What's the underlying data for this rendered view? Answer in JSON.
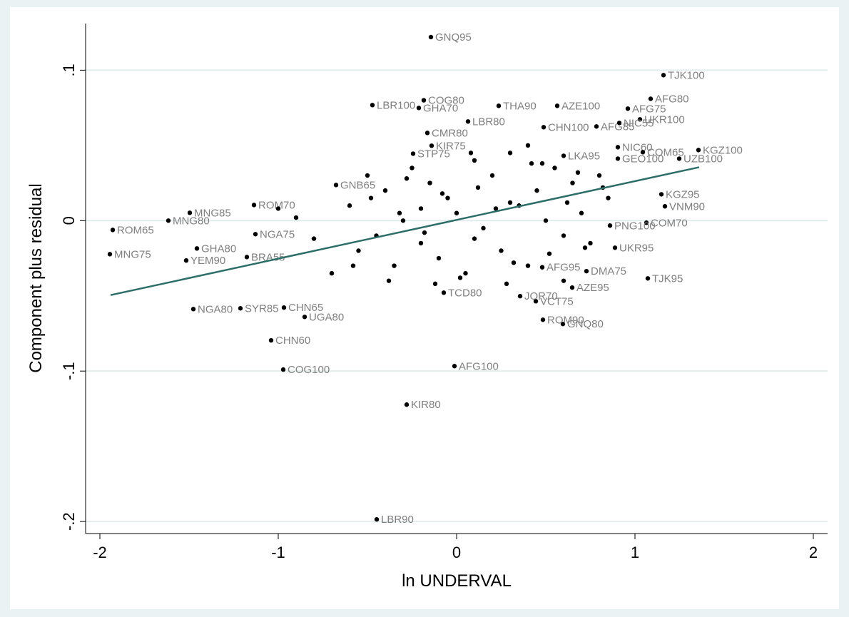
{
  "chart_data": {
    "type": "scatter",
    "xlabel": "ln UNDERVAL",
    "ylabel": "Component plus residual",
    "xlim": [
      -2.08,
      2.08
    ],
    "ylim": [
      -0.208,
      0.131
    ],
    "xticks": [
      -2,
      -1,
      0,
      1,
      2
    ],
    "yticks": [
      {
        "value": -0.2,
        "label": "-.2"
      },
      {
        "value": -0.1,
        "label": "-.1"
      },
      {
        "value": 0,
        "label": "0"
      },
      {
        "value": 0.1,
        "label": ".1"
      }
    ],
    "grid": true,
    "point_color": "#000000",
    "label_color": "#7f7f7f",
    "fit_line": {
      "color": "#2e6e68",
      "x": [
        -1.94,
        1.36
      ],
      "y": [
        -0.0495,
        0.0355
      ]
    },
    "points": {
      "x": [
        -0.144,
        1.16,
        1.088,
        0.96,
        1.028,
        -0.184,
        -0.472,
        -0.212,
        0.236,
        0.564,
        0.064,
        1.356,
        1.248,
        1.148,
        1.168,
        1.064,
        0.888,
        1.072,
        0.728,
        0.648,
        0.444,
        0.596,
        0.484,
        -0.012,
        -0.28,
        -0.448,
        -0.972,
        -1.04,
        -1.476,
        -1.212,
        -0.852,
        -1.928,
        -1.944,
        -1.616,
        -1.496,
        -1.456,
        -1.516,
        -1.128,
        -1.136,
        -0.676,
        -0.164,
        -0.244,
        0.904,
        -0.072,
        -0.968,
        -1.176,
        -0.14,
        0.6,
        0.904,
        1.044,
        0.356,
        0.48,
        0.784,
        0.912,
        0.488,
        0.86,
        -0.6,
        -0.55,
        -0.5,
        -0.45,
        -0.4,
        -0.35,
        -0.3,
        -0.25,
        -0.2,
        -0.15,
        -0.1,
        -0.05,
        0.0,
        0.05,
        0.1,
        0.15,
        0.2,
        0.25,
        0.3,
        0.35,
        0.4,
        0.45,
        0.5,
        0.55,
        0.6,
        0.65,
        0.7,
        0.75,
        0.8,
        0.85,
        -0.58,
        -0.48,
        -0.38,
        -0.28,
        -0.18,
        -0.08,
        0.02,
        0.12,
        0.22,
        0.32,
        0.42,
        0.52,
        0.62,
        0.72,
        0.82,
        -0.32,
        -0.12,
        0.08,
        0.28,
        0.48,
        0.68,
        -0.9,
        -0.8,
        -0.7,
        -1.0,
        0.3,
        0.1,
        -0.2,
        0.6,
        0.4
      ],
      "y": [
        0.122,
        0.0967,
        0.081,
        0.0744,
        0.0673,
        0.08,
        0.0768,
        0.0749,
        0.0763,
        0.0763,
        0.0659,
        0.0469,
        0.0412,
        0.0175,
        0.0095,
        -0.0014,
        -0.018,
        -0.0384,
        -0.0336,
        -0.0445,
        -0.0536,
        -0.0687,
        -0.0659,
        -0.0967,
        -0.1223,
        -0.1986,
        -0.099,
        -0.0796,
        -0.0588,
        -0.0583,
        -0.064,
        -0.0062,
        -0.0223,
        0,
        0.0052,
        -0.0185,
        -0.0265,
        -0.009,
        0.0104,
        0.0237,
        0.0583,
        0.0445,
        0.0488,
        -0.0479,
        -0.0578,
        -0.0242,
        0.0498,
        0.0431,
        0.0412,
        0.0455,
        -0.0502,
        -0.031,
        0.0626,
        0.0649,
        0.0621,
        -0.0033,
        0.01,
        -0.02,
        0.03,
        -0.01,
        0.02,
        -0.03,
        0.0,
        0.035,
        -0.015,
        0.025,
        -0.025,
        0.015,
        0.005,
        -0.035,
        0.04,
        -0.005,
        0.03,
        -0.02,
        0.045,
        0.01,
        -0.03,
        0.02,
        0.0,
        0.035,
        -0.01,
        0.025,
        0.005,
        -0.015,
        0.03,
        0.015,
        -0.03,
        0.015,
        -0.04,
        0.028,
        -0.008,
        0.018,
        -0.038,
        0.022,
        0.008,
        -0.028,
        0.038,
        -0.022,
        0.012,
        -0.018,
        0.022,
        0.005,
        -0.042,
        0.045,
        -0.042,
        0.038,
        0.032,
        0.002,
        -0.012,
        -0.035,
        0.008,
        0.012,
        -0.012,
        0.008,
        -0.04,
        0.05
      ],
      "labels": [
        "GNQ95",
        "TJK100",
        "AFG80",
        "AFG75",
        "UKR100",
        "COG80",
        "LBR100",
        "GHA70",
        "THA90",
        "AZE100",
        "LBR80",
        "KGZ100",
        "UZB100",
        "KGZ95",
        "VNM90",
        "COM70",
        "UKR95",
        "TJK95",
        "DMA75",
        "AZE95",
        "VCT75",
        "GNQ80",
        "ROM90",
        "AFG100",
        "KIR80",
        "LBR90",
        "COG100",
        "CHN60",
        "NGA80",
        "SYR85",
        "UGA80",
        "ROM65",
        "MNG75",
        "MNG80",
        "MNG85",
        "GHA80",
        "YEM90",
        "NGA75",
        "ROM70",
        "GNB65",
        "CMR80",
        "STP75",
        "NIC60",
        "TCD80",
        "CHN65",
        "BRA55",
        "KIR75",
        "LKA95",
        "GEO100",
        "COM65",
        "JOR70",
        "AFG95",
        "AFG85",
        "NIC55",
        "CHN100",
        "PNG100",
        null,
        null,
        null,
        null,
        null,
        null,
        null,
        null,
        null,
        null,
        null,
        null,
        null,
        null,
        null,
        null,
        null,
        null,
        null,
        null,
        null,
        null,
        null,
        null,
        null,
        null,
        null,
        null,
        null,
        null,
        null,
        null,
        null,
        null,
        null,
        null,
        null,
        null,
        null,
        null,
        null,
        null,
        null,
        null,
        null,
        null,
        null,
        null,
        null,
        null,
        null,
        null,
        null,
        null,
        null,
        null,
        null,
        null,
        null,
        null
      ]
    }
  }
}
